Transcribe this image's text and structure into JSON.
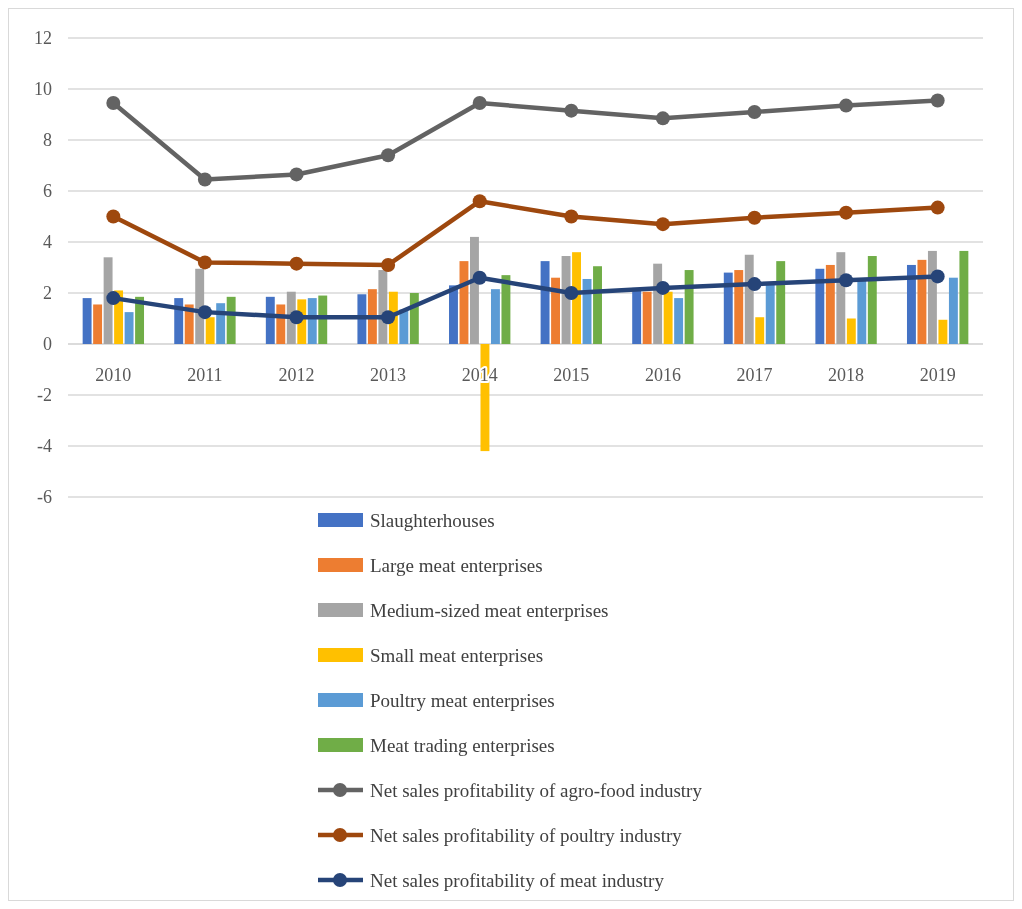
{
  "chart_data": {
    "type": "bar",
    "categories": [
      "2010",
      "2011",
      "2012",
      "2013",
      "2014",
      "2015",
      "2016",
      "2017",
      "2018",
      "2019"
    ],
    "series": [
      {
        "name": "Slaughterhouses",
        "color": "#4472c4",
        "values": [
          1.8,
          1.8,
          1.85,
          1.95,
          2.3,
          3.25,
          2.2,
          2.8,
          2.95,
          3.1
        ]
      },
      {
        "name": "Large meat enterprises",
        "color": "#ed7d31",
        "values": [
          1.55,
          1.55,
          1.55,
          2.15,
          3.25,
          2.6,
          2.05,
          2.9,
          3.1,
          3.3
        ]
      },
      {
        "name": "Medium-sized meat enterprises",
        "color": "#a5a5a5",
        "values": [
          3.4,
          2.95,
          2.05,
          2.9,
          4.2,
          3.45,
          3.15,
          3.5,
          3.6,
          3.65
        ]
      },
      {
        "name": "Small meat enterprises",
        "color": "#ffc000",
        "values": [
          2.1,
          1.05,
          1.75,
          2.05,
          -4.2,
          3.6,
          2.05,
          1.05,
          1.0,
          0.95
        ]
      },
      {
        "name": "Poultry meat enterprises",
        "color": "#5b9bd5",
        "values": [
          1.25,
          1.6,
          1.8,
          1.35,
          2.15,
          2.55,
          1.8,
          2.4,
          2.5,
          2.6
        ]
      },
      {
        "name": "Meat trading enterprises",
        "color": "#70ad47",
        "values": [
          1.85,
          1.85,
          1.9,
          2.0,
          2.7,
          3.05,
          2.9,
          3.25,
          3.45,
          3.65
        ]
      },
      {
        "name": "Net sales profitability of agro-food industry",
        "type": "line",
        "color": "#636363",
        "values": [
          9.45,
          6.45,
          6.65,
          7.4,
          9.45,
          9.15,
          8.85,
          9.1,
          9.35,
          9.55
        ]
      },
      {
        "name": "Net sales profitability of poultry industry",
        "type": "line",
        "color": "#9e480e",
        "values": [
          5.0,
          3.2,
          3.15,
          3.1,
          5.6,
          5.0,
          4.7,
          4.95,
          5.15,
          5.35
        ]
      },
      {
        "name": "Net sales profitability of meat industry",
        "type": "line",
        "color": "#264478",
        "values": [
          1.8,
          1.25,
          1.05,
          1.05,
          2.6,
          2.0,
          2.2,
          2.35,
          2.5,
          2.65
        ]
      }
    ],
    "ylim": [
      -6,
      12
    ],
    "yticks": [
      -6,
      -4,
      -2,
      0,
      2,
      4,
      6,
      8,
      10,
      12
    ],
    "grid": "y",
    "legend": "bottom",
    "marker": "circle",
    "line_style": "solid"
  }
}
